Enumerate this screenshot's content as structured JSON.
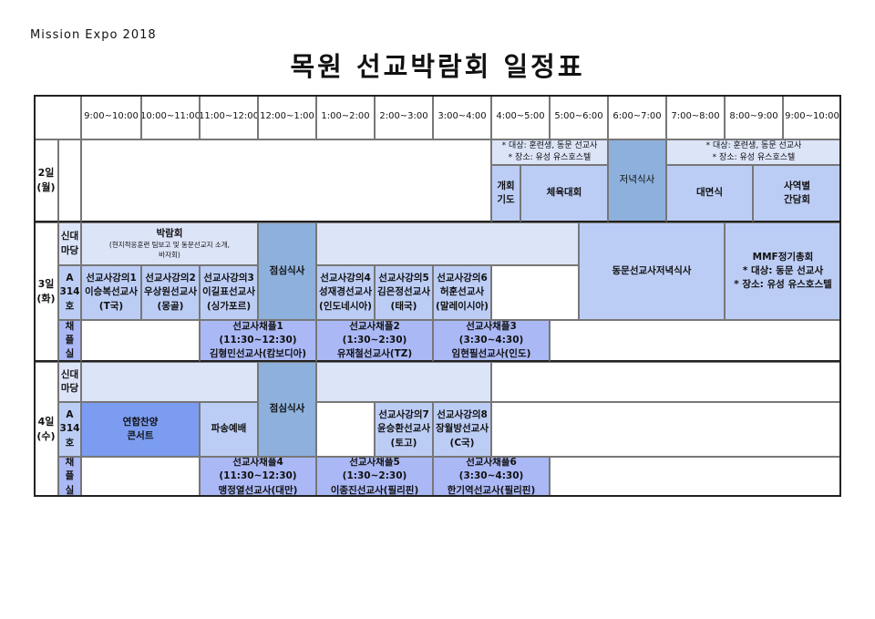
{
  "brand": "Mission Expo 2018",
  "title": "목원 선교박람회 일정표",
  "times": [
    "9:00~10:00",
    "10:00~11:00",
    "11:00~12:00",
    "12:00~1:00",
    "1:00~2:00",
    "2:00~3:00",
    "3:00~4:00",
    "4:00~5:00",
    "5:00~6:00",
    "6:00~7:00",
    "7:00~8:00",
    "8:00~9:00",
    "9:00~10:00"
  ],
  "rooms": {
    "sindae": "신대\n마당",
    "a314": "A\n314\n호",
    "chapel": "채\n플\n실"
  },
  "day2": {
    "label": "2일\n(월)",
    "note1": "* 대상: 훈련생, 동문 선교사\n* 장소: 유성 유스호스텔",
    "prayer": "개회\n기도",
    "sports": "체육대회",
    "dinner": "저녁식사",
    "note2": "* 대상: 훈련생, 동문 선교사\n* 장소: 유성 유스호스텔",
    "meet": "대면식",
    "talk": "사역별\n간담회"
  },
  "day3": {
    "label": "3일\n(화)",
    "expo_title": "박람회",
    "expo_sub": "(현지적응훈련 팀보고 및 동문선교지 소개,\n바자회)",
    "lunch": "점심식사",
    "alumni_dinner": "동문선교사저녁식사",
    "mmf": "MMF정기총회\n* 대상: 동문 선교사\n* 장소: 유성 유스호스텔",
    "lectures": [
      "선교사강의1\n이승복선교사\n(T국)",
      "선교사강의2\n우상원선교사\n(몽골)",
      "선교사강의3\n이길표선교사\n(싱가포르)",
      "선교사강의4\n성재경선교사\n(인도네시아)",
      "선교사강의5\n김은정선교사\n(태국)",
      "선교사강의6\n허훈선교사\n(말레이시아)"
    ],
    "chapels": [
      "선교사채플1\n(11:30~12:30)\n김형민선교사(캄보디아)",
      "선교사채플2\n(1:30~2:30)\n유재철선교사(TZ)",
      "선교사채플3\n(3:30~4:30)\n임현필선교사(인도)"
    ]
  },
  "day4": {
    "label": "4일\n(수)",
    "lunch": "점심식사",
    "concert": "연합찬양\n콘서트",
    "sending": "파송예배",
    "lectures": [
      "선교사강의7\n윤승환선교사\n(토고)",
      "선교사강의8\n장월방선교사\n(C국)"
    ],
    "chapels": [
      "선교사채플4\n(11:30~12:30)\n맹정열선교사(대만)",
      "선교사채플5\n(1:30~2:30)\n이종진선교사(필리핀)",
      "선교사채플6\n(3:30~4:30)\n한기역선교사(필리핀)"
    ]
  },
  "colors": {
    "light": "#dce4f8",
    "medium": "#bccdf5",
    "lunch": "#8db0dc",
    "chapel": "#aab8f5",
    "concert": "#7b9cf0"
  }
}
